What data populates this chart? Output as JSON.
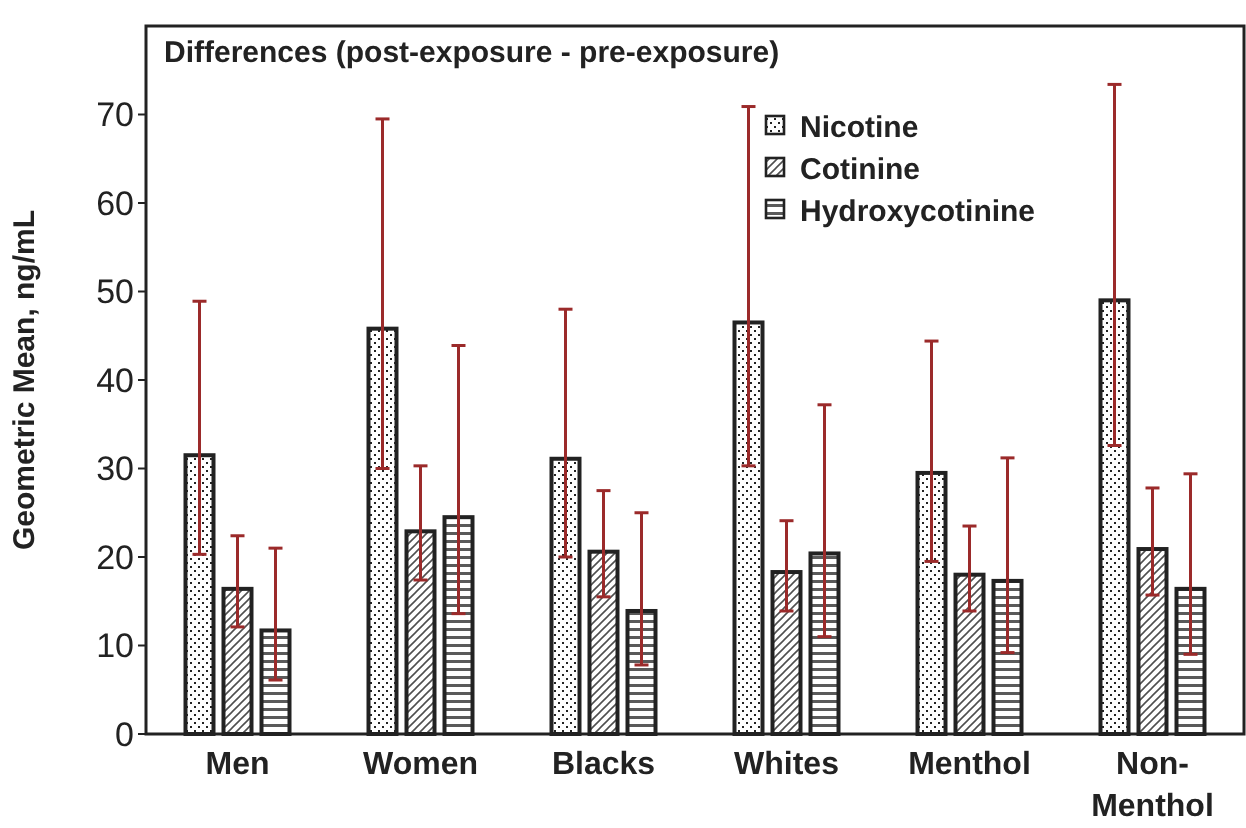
{
  "chart_data": {
    "type": "bar",
    "title": "Differences (post-exposure - pre-exposure)",
    "ylabel": "Geometric Mean, ng/mL",
    "categories": [
      "Men",
      "Women",
      "Blacks",
      "Whites",
      "Menthol",
      "Non-Menthol"
    ],
    "series": [
      {
        "name": "Nicotine",
        "color": "#222222",
        "values": [
          31.5,
          45.8,
          31.1,
          46.5,
          29.5,
          49
        ],
        "errors": [
          [
            20.3,
            48.9
          ],
          [
            30,
            69.5
          ],
          [
            20,
            48
          ],
          [
            30.3,
            70.9
          ],
          [
            19.5,
            44.4
          ],
          [
            32.6,
            73.4
          ]
        ]
      },
      {
        "name": "Cotinine",
        "color": "#222222",
        "values": [
          16.4,
          22.9,
          20.6,
          18.3,
          18,
          20.9
        ],
        "errors": [
          [
            12.1,
            22.4
          ],
          [
            17.4,
            30.3
          ],
          [
            15.5,
            27.5
          ],
          [
            13.9,
            24.1
          ],
          [
            13.9,
            23.5
          ],
          [
            15.7,
            27.8
          ]
        ]
      },
      {
        "name": "Hydroxycotinine",
        "color": "#222222",
        "values": [
          11.7,
          24.5,
          13.9,
          20.4,
          17.3,
          16.4
        ],
        "errors": [
          [
            6.1,
            21
          ],
          [
            13.6,
            43.9
          ],
          [
            7.8,
            25
          ],
          [
            11,
            37.2
          ],
          [
            9.2,
            31.2
          ],
          [
            9,
            29.4
          ]
        ]
      }
    ],
    "ylim": [
      0,
      80
    ],
    "yticks": [
      0,
      10,
      20,
      30,
      40,
      50,
      60,
      70
    ],
    "grid": false,
    "legend": "top"
  }
}
